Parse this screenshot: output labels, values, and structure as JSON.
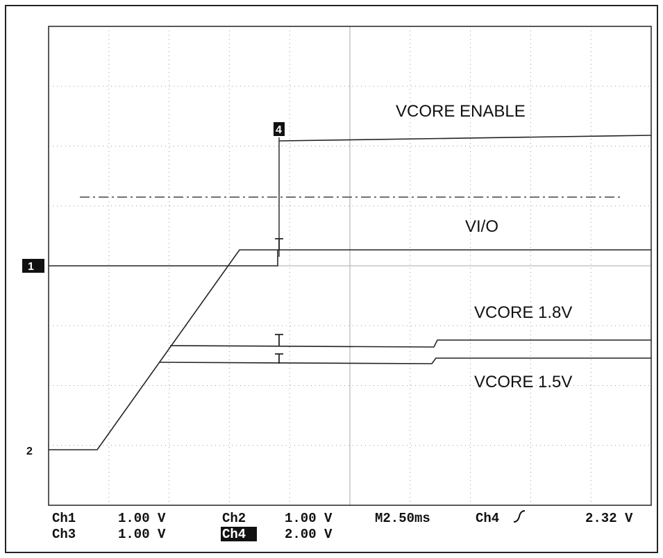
{
  "trace_labels": [
    "VCORE ENABLE",
    "VI/O",
    "VCORE 1.8V",
    "VCORE 1.5V"
  ],
  "markers": [
    "1",
    "2",
    "4"
  ],
  "readout": {
    "row1": [
      "Ch1",
      "1.00 V",
      "Ch2",
      "1.00 V",
      "M2.50ms",
      "Ch4",
      "2.32 V"
    ],
    "row2": [
      "Ch3",
      "1.00 V",
      "Ch4",
      "2.00 V"
    ]
  }
}
